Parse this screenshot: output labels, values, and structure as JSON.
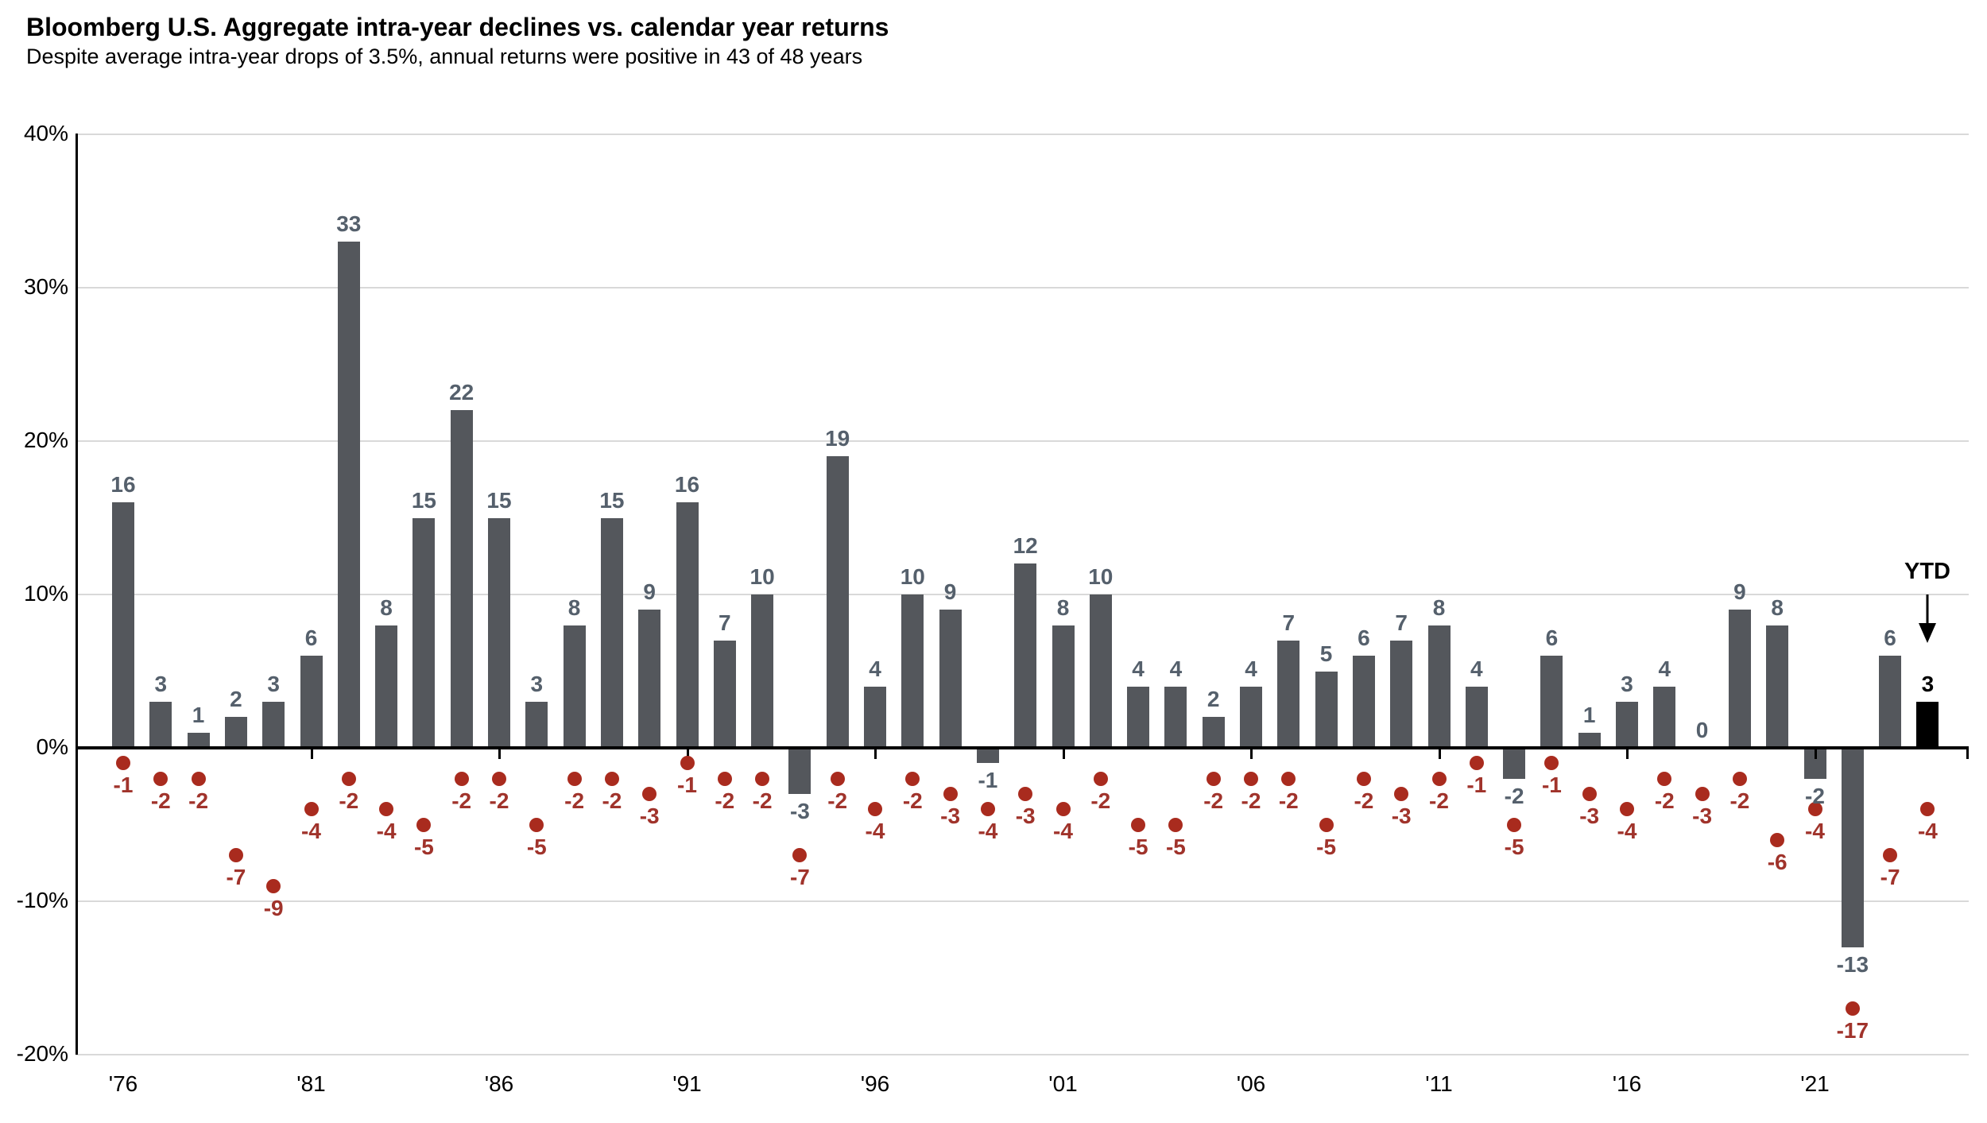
{
  "title": "Bloomberg U.S. Aggregate intra-year declines vs. calendar year returns",
  "subtitle": "Despite average intra-year drops of 3.5%, annual returns were positive in 43 of 48 years",
  "ytd_annotation": {
    "label": "YTD",
    "arrow_icon": "down-arrow-icon"
  },
  "chart_data": {
    "type": "bar",
    "title": "Bloomberg U.S. Aggregate intra-year declines vs. calendar year returns",
    "subtitle": "Despite average intra-year drops of 3.5%, annual returns were positive in 43 of 48 years",
    "categories": [
      "1976",
      "1977",
      "1978",
      "1979",
      "1980",
      "1981",
      "1982",
      "1983",
      "1984",
      "1985",
      "1986",
      "1987",
      "1988",
      "1989",
      "1990",
      "1991",
      "1992",
      "1993",
      "1994",
      "1995",
      "1996",
      "1997",
      "1998",
      "1999",
      "2000",
      "2001",
      "2002",
      "2003",
      "2004",
      "2005",
      "2006",
      "2007",
      "2008",
      "2009",
      "2010",
      "2011",
      "2012",
      "2013",
      "2014",
      "2015",
      "2016",
      "2017",
      "2018",
      "2019",
      "2020",
      "2021",
      "2022",
      "2023",
      "YTD"
    ],
    "series": [
      {
        "name": "Calendar year return (%)",
        "type": "bar",
        "values": [
          16,
          3,
          1,
          2,
          3,
          6,
          33,
          8,
          15,
          22,
          15,
          3,
          8,
          15,
          9,
          16,
          7,
          10,
          -3,
          19,
          4,
          10,
          9,
          -1,
          12,
          8,
          10,
          4,
          4,
          2,
          4,
          7,
          5,
          6,
          7,
          8,
          4,
          -2,
          6,
          1,
          3,
          4,
          0,
          9,
          8,
          -2,
          -13,
          6,
          3
        ]
      },
      {
        "name": "Intra-year decline (%)",
        "type": "scatter",
        "values": [
          -1,
          -2,
          -2,
          -7,
          -9,
          -4,
          -2,
          -4,
          -5,
          -2,
          -2,
          -5,
          -2,
          -2,
          -3,
          -1,
          -2,
          -2,
          -7,
          -2,
          -4,
          -2,
          -3,
          -4,
          -3,
          -4,
          -2,
          -5,
          -5,
          -2,
          -2,
          -2,
          -5,
          -2,
          -3,
          -2,
          -1,
          -5,
          -1,
          -3,
          -4,
          -2,
          -3,
          -2,
          -6,
          -4,
          -17,
          -7,
          -4
        ]
      }
    ],
    "ylim": [
      -20,
      40
    ],
    "yticks": [
      40,
      30,
      20,
      10,
      0,
      -10,
      -20
    ],
    "ytick_labels": [
      "40%",
      "30%",
      "20%",
      "10%",
      "0%",
      "-10%",
      "-20%"
    ],
    "xtick_years": [
      1981,
      1986,
      1991,
      1996,
      2001,
      2006,
      2011,
      2016,
      2021
    ],
    "xtick_labels_all": [
      "'76",
      "'81",
      "'86",
      "'91",
      "'96",
      "'01",
      "'06",
      "'11",
      "'16",
      "'21"
    ],
    "first_xtick_year": 1976,
    "grid": "horizontal",
    "legend": "none",
    "ytd_bar_value": 3,
    "colors": {
      "bar": "#54575c",
      "ytd_bar": "#000000",
      "bar_label": "#55606c",
      "ytd_bar_label": "#000000",
      "dot": "#a92b1e",
      "dot_label": "#a0332b",
      "gridline": "#d9d9d9",
      "axis": "#000000",
      "text": "#000000"
    }
  }
}
